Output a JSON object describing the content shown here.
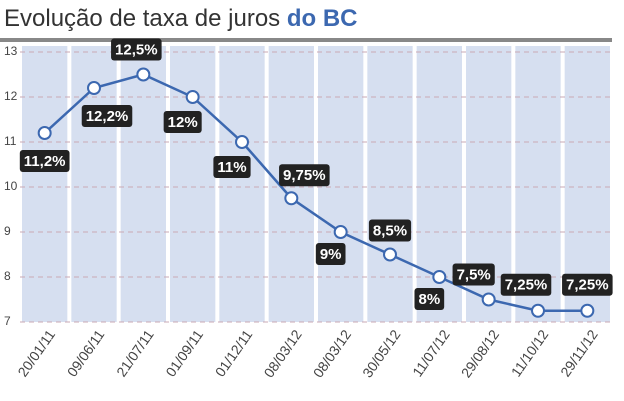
{
  "chart_data": {
    "type": "line",
    "title": "Evolução de taxa de juros",
    "title_highlight": "do BC",
    "categories": [
      "20/01/11",
      "09/06/11",
      "21/07/11",
      "01/09/11",
      "01/12/11",
      "08/03/12",
      "08/03/12",
      "30/05/12",
      "11/07/12",
      "29/08/12",
      "11/10/12",
      "29/11/12"
    ],
    "values": [
      11.2,
      12.2,
      12.5,
      12,
      11,
      9.75,
      9,
      8.5,
      8,
      7.5,
      7.25,
      7.25
    ],
    "value_labels": [
      "11,2%",
      "12,2%",
      "12,5%",
      "12%",
      "11%",
      "9,75%",
      "9%",
      "8,5%",
      "8%",
      "7,5%",
      "7,25%",
      "7,25%"
    ],
    "color": "#3c68b0",
    "ylim": [
      7,
      13
    ],
    "yticks": [
      7,
      8,
      9,
      10,
      11,
      12,
      13
    ],
    "grid": true
  }
}
